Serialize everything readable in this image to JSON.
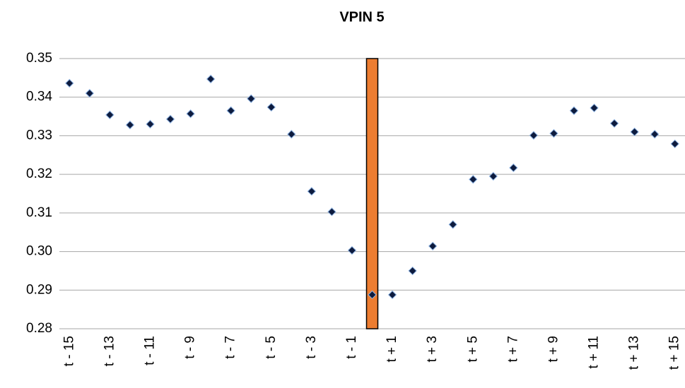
{
  "chart_data": {
    "type": "scatter",
    "title": "VPIN 5",
    "categories": [
      "t - 15",
      null,
      "t - 13",
      null,
      "t - 11",
      null,
      "t - 9",
      null,
      "t - 7",
      null,
      "t - 5",
      null,
      "t - 3",
      null,
      "t - 1",
      null,
      "t + 1",
      null,
      "t + 3",
      null,
      "t + 5",
      null,
      "t + 7",
      null,
      "t + 9",
      null,
      "t + 11",
      null,
      "t + 13",
      null,
      "t + 15"
    ],
    "values": [
      0.3436,
      0.341,
      0.3354,
      0.3328,
      0.333,
      0.3343,
      0.3357,
      0.3447,
      0.3365,
      0.3396,
      0.3374,
      0.3304,
      0.3156,
      0.3103,
      0.3003,
      0.2888,
      0.2888,
      0.295,
      0.3014,
      0.307,
      0.3187,
      0.3195,
      0.3217,
      0.3301,
      0.3306,
      0.3365,
      0.3372,
      0.3332,
      0.331,
      0.3304,
      0.3279
    ],
    "color": "#0d1b3e",
    "highlight_index": 15,
    "highlight_color": "#ed7d31",
    "ylim": [
      0.28,
      0.35
    ],
    "yticks": [
      0.28,
      0.29,
      {
        "value": 0.3,
        "label": "0.30"
      },
      0.31,
      0.32,
      0.33,
      0.34,
      0.35
    ],
    "grid": true
  }
}
